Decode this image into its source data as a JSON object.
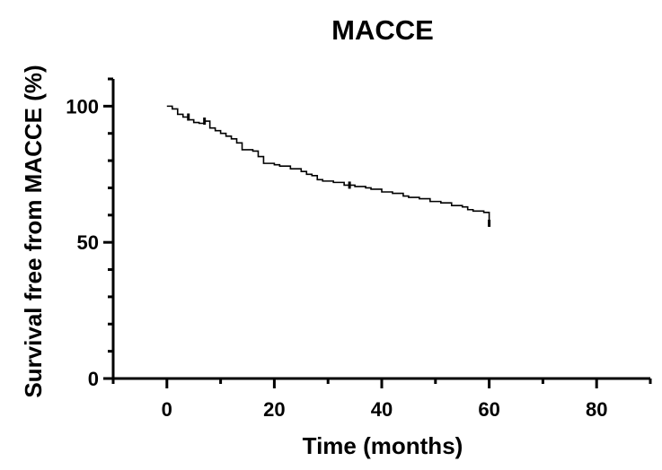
{
  "chart_data": {
    "type": "line",
    "subtype": "kaplan-meier-step",
    "title": "MACCE",
    "xlabel": "Time (months)",
    "ylabel": "Survival free from MACCE (%)",
    "xlim": [
      -10,
      90
    ],
    "ylim": [
      0,
      110
    ],
    "x_ticks_major": [
      0,
      20,
      40,
      60,
      80
    ],
    "x_ticks_minor": [
      -10,
      10,
      30,
      50,
      70,
      90
    ],
    "y_ticks_major": [
      0,
      50,
      100
    ],
    "y_ticks_minor": [
      10,
      20,
      30,
      40,
      60,
      70,
      80,
      90,
      110
    ],
    "grid": false,
    "legend": "none",
    "line_color": "#000000",
    "series": [
      {
        "x": [
          0,
          1,
          2,
          3,
          4,
          5,
          6,
          7,
          8,
          9,
          10,
          11,
          12,
          13,
          14,
          16,
          17,
          18,
          20,
          21,
          23,
          25,
          26,
          27,
          28,
          29,
          31,
          33,
          35,
          37,
          38,
          40,
          42,
          44,
          45,
          47,
          49,
          51,
          53,
          55,
          56,
          57,
          59,
          60
        ],
        "y": [
          100,
          99,
          97,
          96,
          95,
          94,
          93.7,
          94.5,
          92,
          91,
          90,
          89,
          88,
          86.5,
          84,
          83.5,
          81.5,
          79,
          78.5,
          78,
          77,
          76,
          75,
          74.5,
          73,
          72.5,
          72,
          71,
          70.5,
          70,
          69.5,
          68.5,
          68,
          67,
          66.5,
          66,
          65,
          64.5,
          63.5,
          63,
          62,
          61.5,
          61,
          57
        ],
        "censored_x": [
          4,
          7,
          34,
          60
        ],
        "censored_y": [
          96,
          94.5,
          71,
          57
        ]
      }
    ]
  }
}
